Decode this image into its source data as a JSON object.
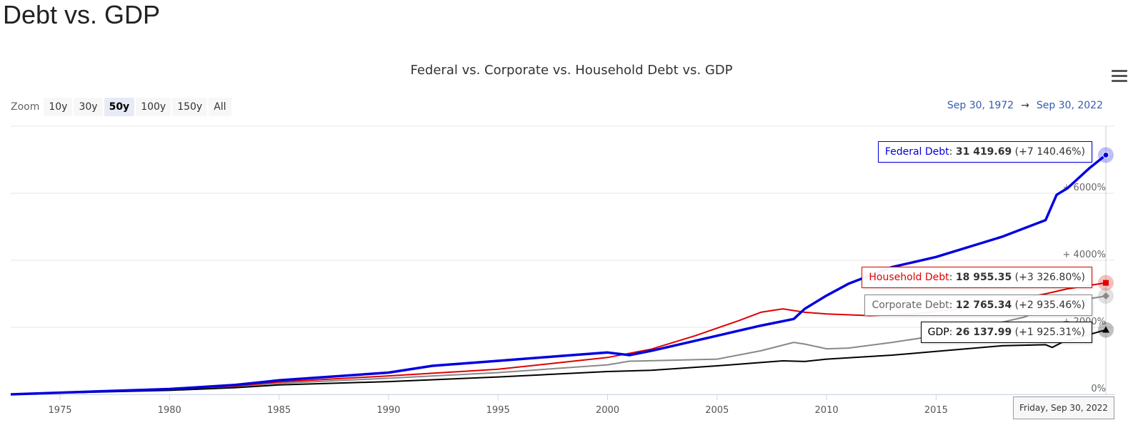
{
  "page": {
    "title": "Debt vs. GDP"
  },
  "chart_data": {
    "type": "line",
    "title": "Federal vs. Corporate vs. Household Debt vs. GDP",
    "zoom": {
      "label": "Zoom",
      "options": [
        "10y",
        "30y",
        "50y",
        "100y",
        "150y",
        "All"
      ],
      "selected": "50y"
    },
    "range": {
      "from": "Sep 30, 1972",
      "arrow": "→",
      "to": "Sep 30, 2022"
    },
    "x_ticks": [
      "1975",
      "1980",
      "1985",
      "1990",
      "1995",
      "2000",
      "2005",
      "2010",
      "2015"
    ],
    "xlim": [
      1972.75,
      2022.75
    ],
    "y_ticks": [
      "0%",
      "+ 2000%",
      "+ 4000%",
      "+ 6000%"
    ],
    "y_tick_values": [
      0,
      2000,
      4000,
      6000
    ],
    "ylim": [
      0,
      8000
    ],
    "series": [
      {
        "name": "Federal Debt",
        "color": "#0000e0",
        "points": [
          [
            1972.75,
            0
          ],
          [
            1975,
            50
          ],
          [
            1980,
            160
          ],
          [
            1983,
            280
          ],
          [
            1985,
            420
          ],
          [
            1990,
            650
          ],
          [
            1992,
            850
          ],
          [
            1995,
            1000
          ],
          [
            1998,
            1150
          ],
          [
            2000,
            1250
          ],
          [
            2001,
            1170
          ],
          [
            2002,
            1300
          ],
          [
            2003,
            1450
          ],
          [
            2005,
            1750
          ],
          [
            2007,
            2050
          ],
          [
            2008.5,
            2250
          ],
          [
            2009,
            2550
          ],
          [
            2010,
            2950
          ],
          [
            2011,
            3300
          ],
          [
            2012,
            3550
          ],
          [
            2013,
            3800
          ],
          [
            2014,
            3950
          ],
          [
            2015,
            4100
          ],
          [
            2016,
            4300
          ],
          [
            2017,
            4500
          ],
          [
            2018,
            4700
          ],
          [
            2019,
            4950
          ],
          [
            2020,
            5200
          ],
          [
            2020.5,
            5950
          ],
          [
            2021,
            6150
          ],
          [
            2022,
            6750
          ],
          [
            2022.75,
            7140
          ]
        ]
      },
      {
        "name": "Household Debt",
        "color": "#e00000",
        "points": [
          [
            1972.75,
            0
          ],
          [
            1975,
            60
          ],
          [
            1980,
            170
          ],
          [
            1983,
            250
          ],
          [
            1985,
            370
          ],
          [
            1990,
            550
          ],
          [
            1995,
            750
          ],
          [
            2000,
            1100
          ],
          [
            2002,
            1350
          ],
          [
            2004,
            1750
          ],
          [
            2006,
            2200
          ],
          [
            2007,
            2450
          ],
          [
            2008,
            2550
          ],
          [
            2009,
            2450
          ],
          [
            2010,
            2400
          ],
          [
            2012,
            2350
          ],
          [
            2014,
            2400
          ],
          [
            2016,
            2550
          ],
          [
            2018,
            2750
          ],
          [
            2020,
            3000
          ],
          [
            2021,
            3150
          ],
          [
            2022.75,
            3327
          ]
        ]
      },
      {
        "name": "Corporate Debt",
        "color": "#888888",
        "points": [
          [
            1972.75,
            0
          ],
          [
            1975,
            50
          ],
          [
            1980,
            140
          ],
          [
            1983,
            230
          ],
          [
            1985,
            330
          ],
          [
            1990,
            480
          ],
          [
            1995,
            650
          ],
          [
            2000,
            880
          ],
          [
            2001,
            990
          ],
          [
            2005,
            1050
          ],
          [
            2007,
            1300
          ],
          [
            2008.5,
            1550
          ],
          [
            2009,
            1500
          ],
          [
            2010,
            1360
          ],
          [
            2011,
            1380
          ],
          [
            2013,
            1550
          ],
          [
            2015,
            1750
          ],
          [
            2017,
            2000
          ],
          [
            2019,
            2300
          ],
          [
            2020,
            2550
          ],
          [
            2021,
            2750
          ],
          [
            2022.75,
            2935
          ]
        ]
      },
      {
        "name": "GDP",
        "color": "#000000",
        "points": [
          [
            1972.75,
            0
          ],
          [
            1975,
            40
          ],
          [
            1980,
            120
          ],
          [
            1983,
            200
          ],
          [
            1985,
            280
          ],
          [
            1990,
            380
          ],
          [
            1995,
            520
          ],
          [
            2000,
            680
          ],
          [
            2002,
            720
          ],
          [
            2005,
            850
          ],
          [
            2008,
            1000
          ],
          [
            2009,
            980
          ],
          [
            2010,
            1050
          ],
          [
            2013,
            1170
          ],
          [
            2015,
            1280
          ],
          [
            2018,
            1450
          ],
          [
            2020,
            1480
          ],
          [
            2020.3,
            1400
          ],
          [
            2020.75,
            1550
          ],
          [
            2022.75,
            1925
          ]
        ]
      }
    ],
    "tooltips": [
      {
        "name": "Federal Debt",
        "value": "31 419.69",
        "change": "(+7 140.46%)",
        "color": "#0000e0",
        "border": "#0000e0"
      },
      {
        "name": "Household Debt",
        "value": "18 955.35",
        "change": "(+3 326.80%)",
        "color": "#e00000",
        "border": "#e00000"
      },
      {
        "name": "Corporate Debt",
        "value": "12 765.34",
        "change": "(+2 935.46%)",
        "color": "#666666",
        "border": "#888888"
      },
      {
        "name": "GDP",
        "value": "26 137.99",
        "change": "(+1 925.31%)",
        "color": "#000000",
        "border": "#000000"
      }
    ],
    "crosshair_date": "Friday, Sep 30, 2022"
  }
}
